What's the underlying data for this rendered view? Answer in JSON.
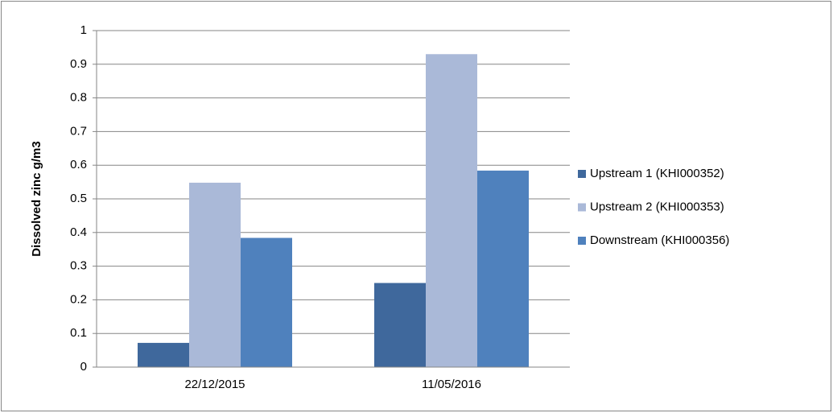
{
  "chart_data": {
    "type": "bar",
    "y_label": "Dissolved zinc g/m3",
    "categories": [
      "22/12/2015",
      "11/05/2016"
    ],
    "series": [
      {
        "name": "Upstream 1 (KHI000352)",
        "color": "#3f689c",
        "values": [
          0.072,
          0.25
        ]
      },
      {
        "name": "Upstream 2 (KHI000353)",
        "color": "#aab9d8",
        "values": [
          0.548,
          0.93
        ]
      },
      {
        "name": "Downstream (KHI000356)",
        "color": "#4f81bd",
        "values": [
          0.384,
          0.584
        ]
      }
    ],
    "ylim": [
      0,
      1
    ],
    "yticks": [
      0,
      0.1,
      0.2,
      0.3,
      0.4,
      0.5,
      0.6,
      0.7,
      0.8,
      0.9,
      1
    ],
    "grid": true,
    "legend": "right"
  }
}
